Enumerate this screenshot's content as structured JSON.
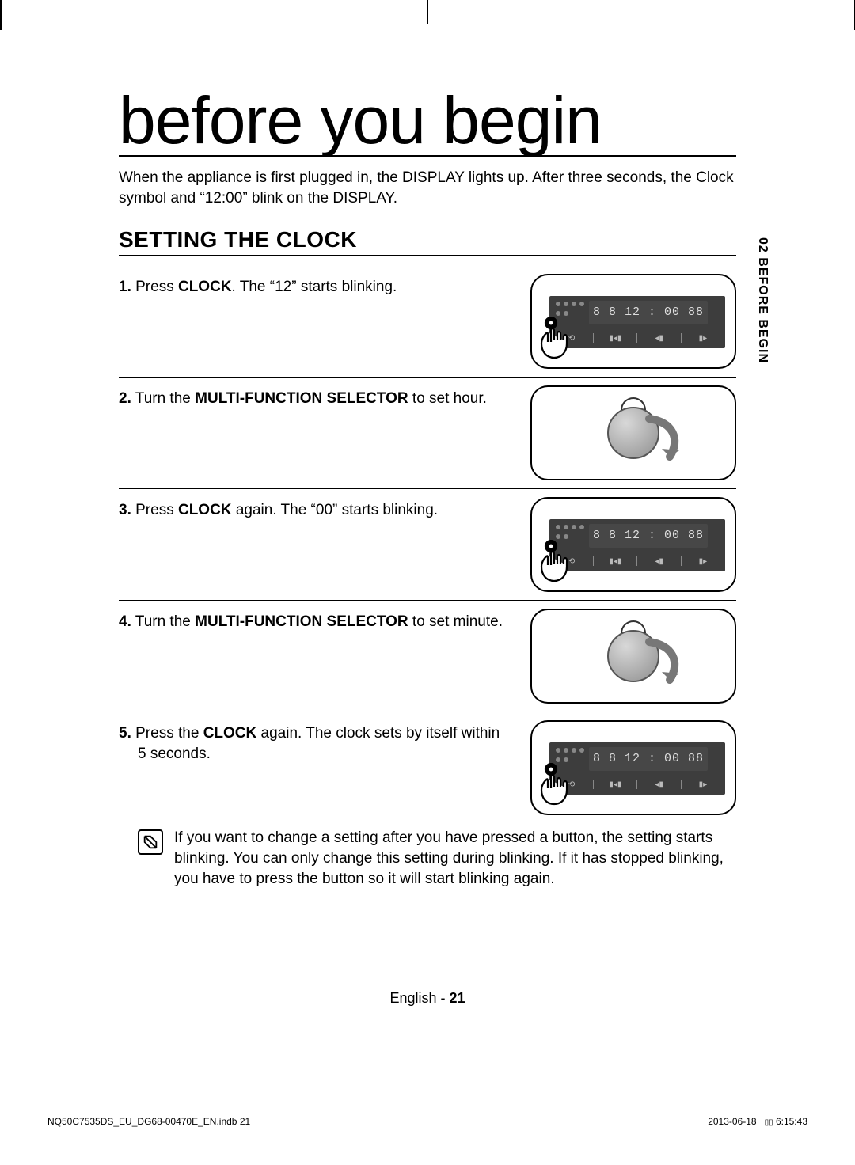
{
  "title": "before you begin",
  "intro": "When the appliance is first plugged in, the DISPLAY lights up. After three seconds, the Clock symbol and “12:00” blink on the DISPLAY.",
  "section_heading": "SETTING THE CLOCK",
  "side_tab": "02  BEFORE BEGIN",
  "steps": [
    {
      "num": "1.",
      "pre": "Press ",
      "bold": "CLOCK",
      "post": ". The “12” starts blinking.",
      "fig": "panel",
      "display": "8 8 12 : 00 88"
    },
    {
      "num": "2.",
      "pre": "Turn the ",
      "bold": "MULTI-FUNCTION SELECTOR",
      "post": " to set hour.",
      "fig": "knob"
    },
    {
      "num": "3.",
      "pre": "Press ",
      "bold": "CLOCK",
      "post": " again. The “00” starts blinking.",
      "fig": "panel",
      "display": "8 8 12 : 00 88"
    },
    {
      "num": "4.",
      "pre": "Turn the ",
      "bold": "MULTI-FUNCTION SELECTOR",
      "post": " to set minute.",
      "fig": "knob"
    },
    {
      "num": "5.",
      "pre": "Press the ",
      "bold": "CLOCK",
      "post": " again. The clock sets by itself within 5 seconds.",
      "fig": "panel",
      "display": "8 8 12 : 00 88"
    }
  ],
  "note": "If you want to change a setting after you have pressed a button, the setting starts blinking. You can only change this setting during blinking. If it has stopped blinking, you have to press the button so it will start blinking again.",
  "footer_lang_label": "English - ",
  "footer_lang_page": "21",
  "footer_file": "NQ50C7535DS_EU_DG68-00470E_EN.indb   21",
  "footer_time_date": "2013-06-18",
  "footer_time_clock": "6:15:43",
  "colors": {
    "panel_bg": "#3d3d3d",
    "panel_display_bg": "#474747",
    "panel_text": "#dddddd",
    "knob_light": "#d8d8d8",
    "knob_dark": "#8f8f8f",
    "border": "#000000"
  }
}
